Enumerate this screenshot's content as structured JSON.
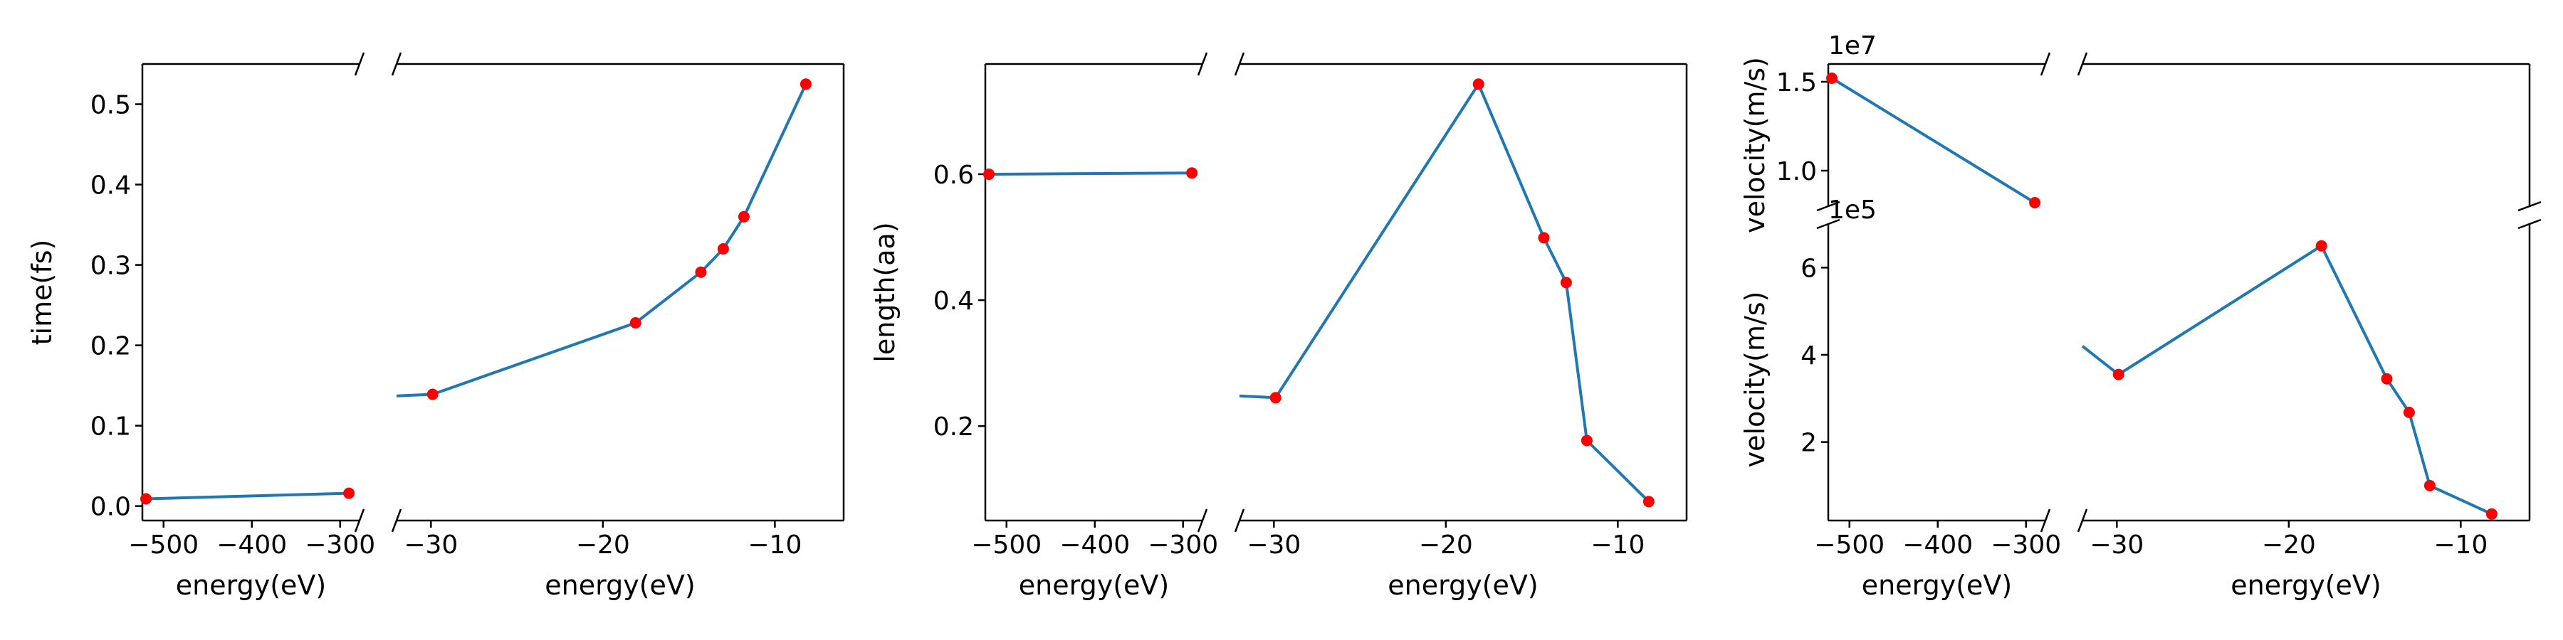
{
  "colors": {
    "line": "#1f77b4",
    "marker": "#ff0000",
    "axis": "#000000",
    "background": "#ffffff"
  },
  "chart_data": [
    {
      "type": "line",
      "subtype": "broken-x-axis",
      "ylabel": "time(fs)",
      "ylim": [
        -0.018,
        0.55
      ],
      "yticks": [
        0.0,
        0.1,
        0.2,
        0.3,
        0.4,
        0.5
      ],
      "ytick_labels": [
        "0.0",
        "0.1",
        "0.2",
        "0.3",
        "0.4",
        "0.5"
      ],
      "grid": false,
      "legend": "none",
      "segments": [
        {
          "xlabel": "energy(eV)",
          "xlim": [
            -524,
            -278
          ],
          "xticks": [
            -500,
            -400,
            -300
          ],
          "xtick_labels": [
            "−500",
            "−400",
            "−300"
          ],
          "x": [
            -520,
            -290
          ],
          "y": [
            0.009,
            0.016
          ]
        },
        {
          "xlabel": "energy(eV)",
          "xlim": [
            -32,
            -6
          ],
          "xticks": [
            -30,
            -20,
            -10
          ],
          "xtick_labels": [
            "−30",
            "−20",
            "−10"
          ],
          "x": [
            -29.9,
            -18.1,
            -14.3,
            -13.0,
            -11.8,
            -8.2
          ],
          "y": [
            0.139,
            0.228,
            0.291,
            0.32,
            0.36,
            0.525
          ]
        }
      ]
    },
    {
      "type": "line",
      "subtype": "broken-x-axis",
      "ylabel": "length(aa)",
      "ylim": [
        0.05,
        0.775
      ],
      "yticks": [
        0.2,
        0.4,
        0.6
      ],
      "ytick_labels": [
        "0.2",
        "0.4",
        "0.6"
      ],
      "grid": false,
      "legend": "none",
      "segments": [
        {
          "xlabel": "energy(eV)",
          "xlim": [
            -524,
            -278
          ],
          "xticks": [
            -500,
            -400,
            -300
          ],
          "xtick_labels": [
            "−500",
            "−400",
            "−300"
          ],
          "x": [
            -520,
            -290
          ],
          "y": [
            0.6,
            0.602
          ]
        },
        {
          "xlabel": "energy(eV)",
          "xlim": [
            -32,
            -6
          ],
          "xticks": [
            -30,
            -20,
            -10
          ],
          "xtick_labels": [
            "−30",
            "−20",
            "−10"
          ],
          "x": [
            -29.9,
            -18.1,
            -14.3,
            -13.0,
            -11.8,
            -8.2
          ],
          "y": [
            0.245,
            0.743,
            0.499,
            0.428,
            0.177,
            0.08
          ]
        }
      ]
    },
    {
      "type": "line",
      "subtype": "broken-x-and-y-axis",
      "ylabel": "velocity(m/s)",
      "grid": false,
      "legend": "none",
      "top_panel": {
        "ylabel": "velocity(m/s)",
        "offset_text": "1e7",
        "ylim": [
          0.8,
          1.6
        ],
        "yticks": [
          1.0,
          1.5
        ],
        "ytick_labels": [
          "1.0",
          "1.5"
        ]
      },
      "bottom_panel": {
        "ylabel": "velocity(m/s)",
        "offset_text": "1e5",
        "ylim": [
          0.2,
          7.0
        ],
        "yticks": [
          2,
          4,
          6
        ],
        "ytick_labels": [
          "2",
          "4",
          "6"
        ]
      },
      "segments": [
        {
          "xlabel": "energy(eV)",
          "xlim": [
            -524,
            -278
          ],
          "xticks": [
            -500,
            -400,
            -300
          ],
          "xtick_labels": [
            "−500",
            "−400",
            "−300"
          ],
          "x": [
            -520,
            -290
          ],
          "y": [
            15200000,
            8200000
          ]
        },
        {
          "xlabel": "energy(eV)",
          "xlim": [
            -32,
            -6
          ],
          "xticks": [
            -30,
            -20,
            -10
          ],
          "xtick_labels": [
            "−30",
            "−20",
            "−10"
          ],
          "x": [
            -29.9,
            -18.1,
            -14.3,
            -13.0,
            -11.8,
            -8.2
          ],
          "y": [
            355000,
            650000,
            345000,
            268000,
            100000,
            35000
          ]
        }
      ]
    }
  ]
}
